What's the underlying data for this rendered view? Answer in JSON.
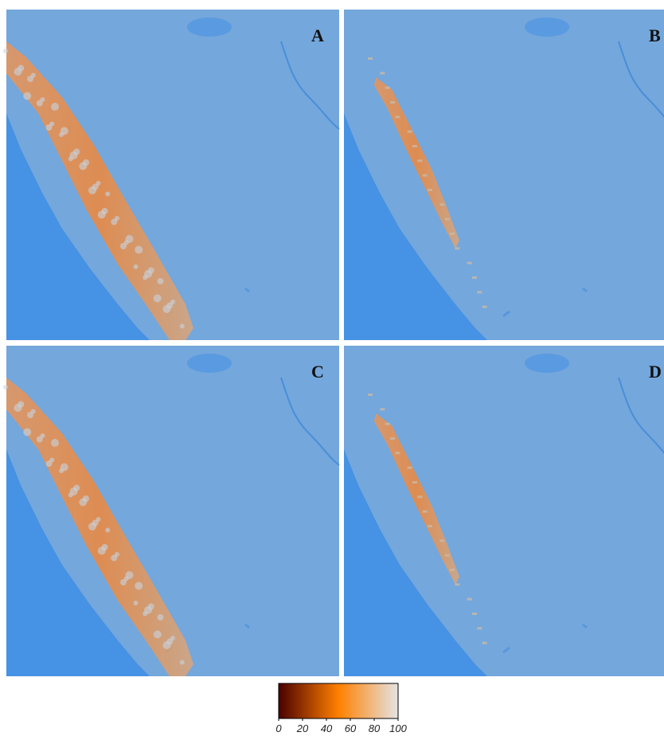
{
  "panels": [
    {
      "label": "A"
    },
    {
      "label": "B"
    },
    {
      "label": "C"
    },
    {
      "label": "D"
    }
  ],
  "colorbar": {
    "range": [
      0,
      100
    ],
    "ticks": [
      0,
      20,
      40,
      60,
      80,
      100
    ],
    "colors": [
      "#4a0000",
      "#ff8000",
      "#e4e4e4"
    ]
  }
}
